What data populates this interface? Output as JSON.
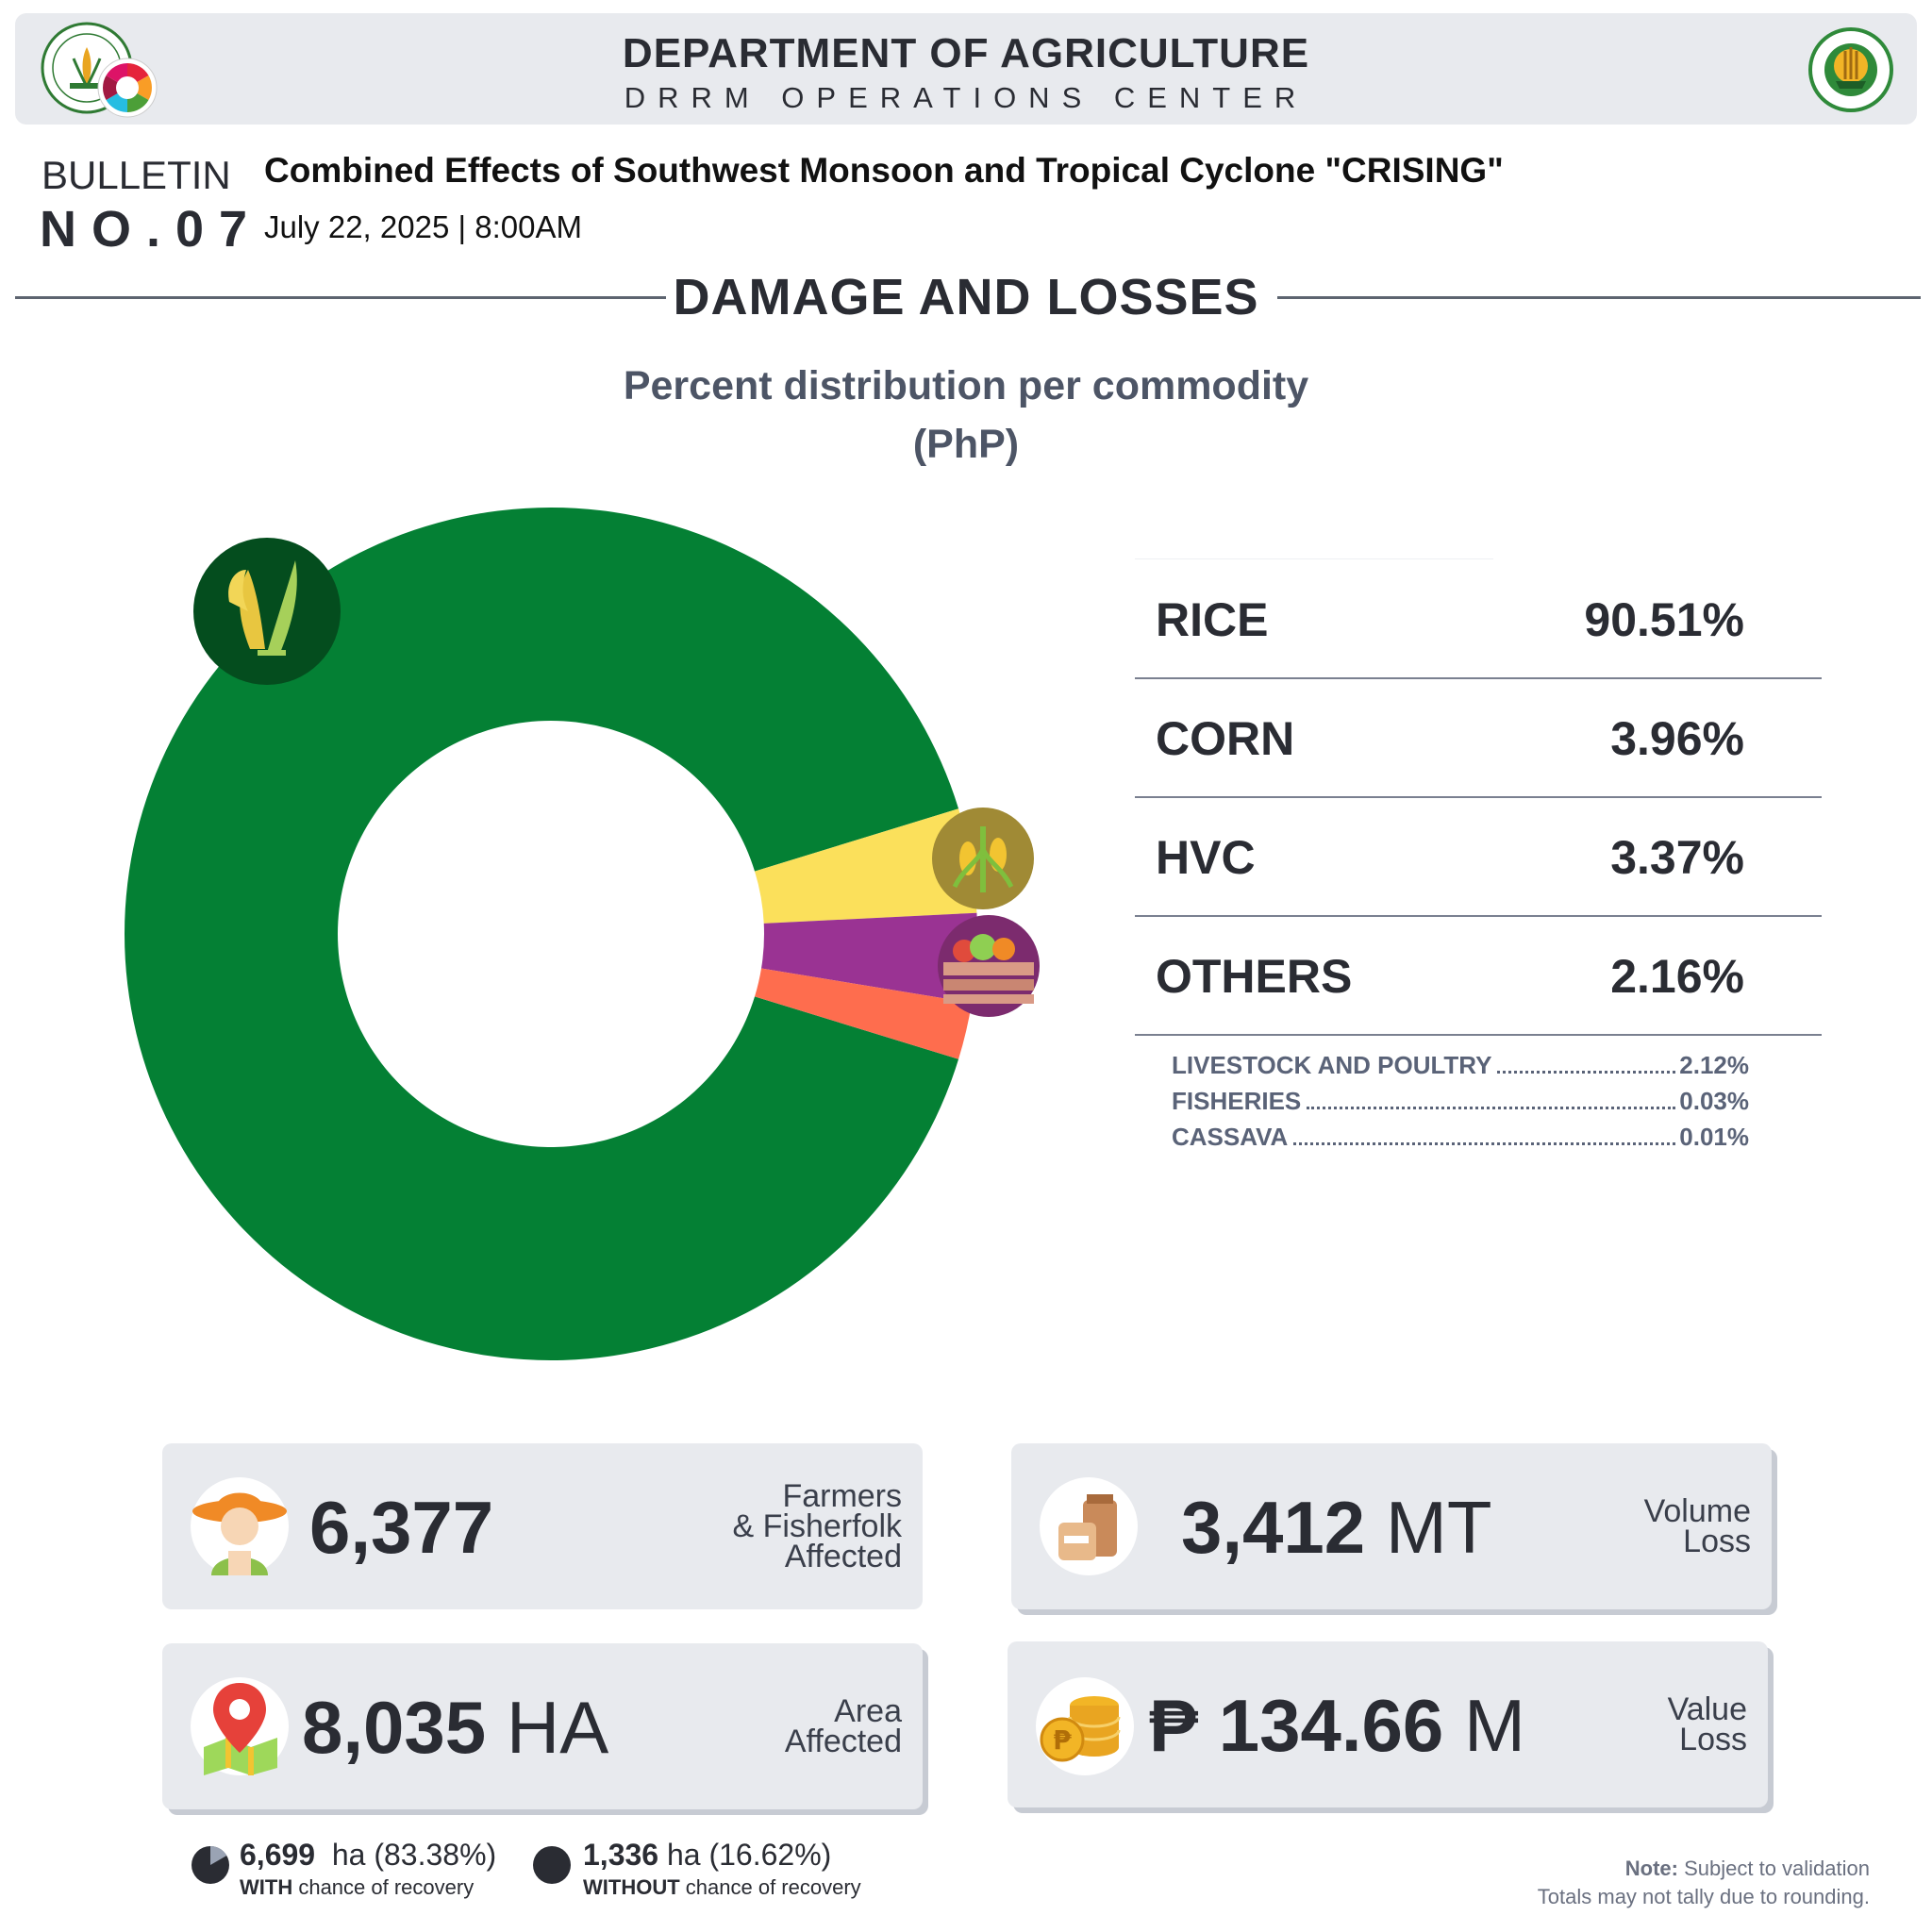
{
  "header": {
    "title": "DEPARTMENT OF AGRICULTURE",
    "subtitle": "DRRM OPERATIONS CENTER"
  },
  "bulletin": {
    "label": "BULLETIN",
    "number": "NO.07",
    "title": "Combined Effects of Southwest Monsoon and Tropical Cyclone  \"CRISING\"",
    "date": "July 22, 2025 | 8:00AM"
  },
  "section": {
    "title": "DAMAGE AND LOSSES"
  },
  "chart_data": {
    "type": "pie",
    "title": "Percent distribution per commodity",
    "subtitle": "(PhP)",
    "categories": [
      "RICE",
      "CORN",
      "HVC",
      "OTHERS"
    ],
    "values": [
      90.51,
      3.96,
      3.37,
      2.16
    ],
    "value_labels": [
      "90.51%",
      "3.96%",
      "3.37%",
      "2.16%"
    ],
    "colors": [
      "#048034",
      "#fbe05b",
      "#9a3393",
      "#fe6d4e"
    ],
    "icons": [
      "rice-plant-icon",
      "corn-icon",
      "vegetable-crate-icon",
      ""
    ],
    "others_breakdown": [
      {
        "name": "LIVESTOCK AND POULTRY",
        "value": "2.12%"
      },
      {
        "name": "FISHERIES",
        "value": "0.03%"
      },
      {
        "name": "CASSAVA",
        "value": "0.01%"
      }
    ]
  },
  "stats": {
    "farmers": {
      "value": "6,377",
      "label_lines": [
        "Farmers",
        "& Fisherfolk",
        "Affected"
      ]
    },
    "volume": {
      "value": "3,412",
      "unit": "MT",
      "label_lines": [
        "Volume",
        "Loss"
      ]
    },
    "area": {
      "value": "8,035",
      "unit": "HA",
      "label_lines": [
        "Area",
        "Affected"
      ]
    },
    "value_loss": {
      "currency": "₱",
      "value": "134.66",
      "unit": "M",
      "label_lines": [
        "Value",
        "Loss"
      ]
    }
  },
  "recovery": {
    "with": {
      "value": "6,699",
      "unit": "ha (83.38%)",
      "note_bold": "WITH",
      "note_rest": "chance of recovery",
      "fraction": 0.8338
    },
    "without": {
      "value": "1,336",
      "unit": "ha (16.62%)",
      "note_bold": "WITHOUT",
      "note_rest": "chance of recovery",
      "fraction": 0.1662
    }
  },
  "note": {
    "bold": "Note:",
    "line1": "Subject to validation",
    "line2": "Totals may not tally due to rounding."
  }
}
